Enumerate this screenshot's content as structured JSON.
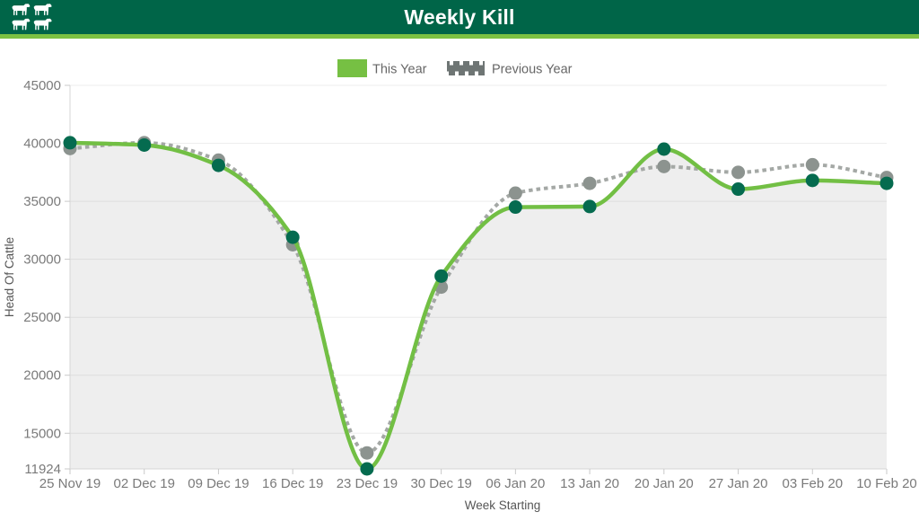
{
  "header": {
    "title": "Weekly Kill",
    "background": "#006548",
    "accent_strip": "#7CC142",
    "logo_icon": "cattle-icon"
  },
  "legend": {
    "items": [
      {
        "label": "This Year",
        "swatch_color": "#76C043",
        "style": "solid"
      },
      {
        "label": "Previous Year",
        "swatch_color": "#6E7574",
        "style": "dashed"
      }
    ]
  },
  "chart_data": {
    "type": "line",
    "title": "Weekly Kill",
    "xlabel": "Week Starting",
    "ylabel": "Head Of Cattle",
    "grid": "horizontal",
    "legend_position": "top",
    "ylim": [
      11924,
      45000
    ],
    "y_ticks": [
      45000,
      40000,
      35000,
      30000,
      25000,
      20000,
      15000,
      11924
    ],
    "categories": [
      "25 Nov 19",
      "02 Dec 19",
      "09 Dec 19",
      "16 Dec 19",
      "23 Dec 19",
      "30 Dec 19",
      "06 Jan 20",
      "13 Jan 20",
      "20 Jan 20",
      "27 Jan 20",
      "03 Feb 20",
      "10 Feb 20"
    ],
    "series": [
      {
        "name": "This Year",
        "style": "solid",
        "line_color": "#72BF44",
        "marker_color": "#056B4F",
        "area_fill": "rgba(0,0,0,0.065)",
        "values": [
          40050,
          39850,
          38100,
          31900,
          11924,
          28550,
          34500,
          34550,
          39500,
          36050,
          36800,
          36550
        ]
      },
      {
        "name": "Previous Year",
        "style": "dashed",
        "line_color": "#A4A8A5",
        "marker_color": "#8C938F",
        "values": [
          39550,
          40050,
          38550,
          31250,
          13300,
          27600,
          35700,
          36550,
          38000,
          37500,
          38150,
          37050
        ]
      }
    ],
    "axis_text_color": "#7a7a7a",
    "axis_title_color": "#565656",
    "legend_text_color": "#666666",
    "grid_color": "rgba(0,0,0,0.07)",
    "axis_line_color": "#d6d6d6"
  }
}
